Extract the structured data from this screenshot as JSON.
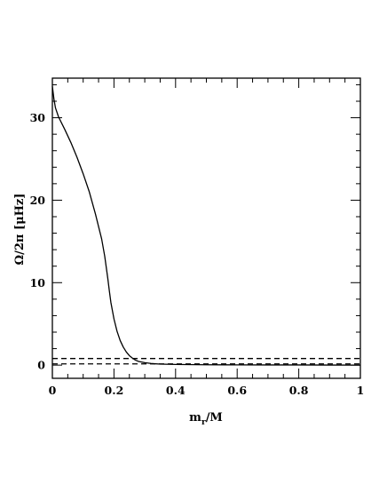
{
  "chart_data": {
    "type": "line",
    "xlabel": "m_r/M",
    "xlabel_parts": {
      "base": "m",
      "sub": "r",
      "rest": "/M"
    },
    "ylabel": "Ω/2π [μHz]",
    "xlim": [
      0,
      1
    ],
    "ylim": [
      -1.6,
      34.8
    ],
    "x_ticks": [
      0,
      0.2,
      0.4,
      0.6,
      0.8,
      1
    ],
    "x_tick_labels": [
      "0",
      "0.2",
      "0.4",
      "0.6",
      "0.8",
      "1"
    ],
    "y_ticks": [
      0,
      10,
      20,
      30
    ],
    "y_tick_labels": [
      "0",
      "10",
      "20",
      "30"
    ],
    "grid": false,
    "series": [
      {
        "style": "solid",
        "x": [
          0,
          0.005,
          0.01,
          0.02,
          0.04,
          0.06,
          0.08,
          0.1,
          0.12,
          0.14,
          0.16,
          0.17,
          0.18,
          0.185,
          0.19,
          0.2,
          0.21,
          0.22,
          0.23,
          0.24,
          0.25,
          0.26,
          0.27,
          0.28,
          0.3,
          0.32,
          0.35,
          0.4,
          0.5,
          0.6,
          0.7,
          0.8,
          0.9,
          1.0
        ],
        "y": [
          33.8,
          32.3,
          31.2,
          30.1,
          28.6,
          27.0,
          25.2,
          23.2,
          21.0,
          18.3,
          15.3,
          13.2,
          10.5,
          9.0,
          7.6,
          5.6,
          4.1,
          3.0,
          2.2,
          1.6,
          1.15,
          0.85,
          0.6,
          0.45,
          0.3,
          0.2,
          0.12,
          0.08,
          0.04,
          0.03,
          0.02,
          0.02,
          0.01,
          0.0
        ]
      },
      {
        "style": "dashed",
        "x": [
          0,
          1
        ],
        "y": [
          0.8,
          0.8
        ]
      },
      {
        "style": "dashed",
        "x": [
          0,
          1
        ],
        "y": [
          0.15,
          0.15
        ]
      }
    ]
  }
}
